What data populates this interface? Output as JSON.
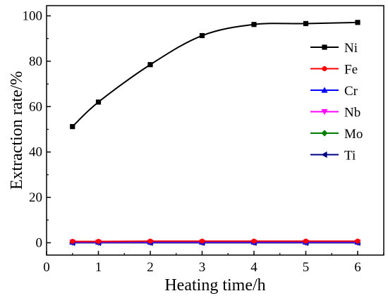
{
  "chart_data": {
    "type": "line",
    "xlabel": "Heating time/h",
    "ylabel": "Extraction rate/%",
    "xlim": [
      0,
      7
    ],
    "ylim": [
      -5,
      103
    ],
    "x_ticks": [
      0,
      1,
      2,
      3,
      4,
      5,
      6
    ],
    "y_ticks": [
      0,
      20,
      40,
      60,
      80,
      100
    ],
    "legend_position": "right",
    "x": [
      0.5,
      1,
      2,
      3,
      4,
      5,
      6
    ],
    "series": [
      {
        "name": "Ni",
        "color": "#000000",
        "marker": "square",
        "values": [
          51.2,
          62,
          78.5,
          91.3,
          96.2,
          96.6,
          97.1
        ],
        "curve": "smooth"
      },
      {
        "name": "Fe",
        "color": "#ff0000",
        "marker": "circle",
        "values": [
          0.6,
          0.6,
          0.7,
          0.7,
          0.7,
          0.7,
          0.7
        ]
      },
      {
        "name": "Cr",
        "color": "#0000ff",
        "marker": "triangle-up",
        "values": [
          0.3,
          0.3,
          0.3,
          0.3,
          0.3,
          0.3,
          0.3
        ]
      },
      {
        "name": "Nb",
        "color": "#ff00ff",
        "marker": "triangle-down",
        "values": [
          0.2,
          0.2,
          0.2,
          0.2,
          0.2,
          0.2,
          0.2
        ]
      },
      {
        "name": "Mo",
        "color": "#008000",
        "marker": "diamond",
        "values": [
          0.1,
          0.1,
          0.1,
          0.1,
          0.1,
          0.1,
          0.1
        ]
      },
      {
        "name": "Ti",
        "color": "#000080",
        "marker": "triangle-left",
        "values": [
          0.0,
          0.0,
          0.0,
          0.0,
          0.0,
          0.0,
          0.0
        ]
      }
    ]
  }
}
